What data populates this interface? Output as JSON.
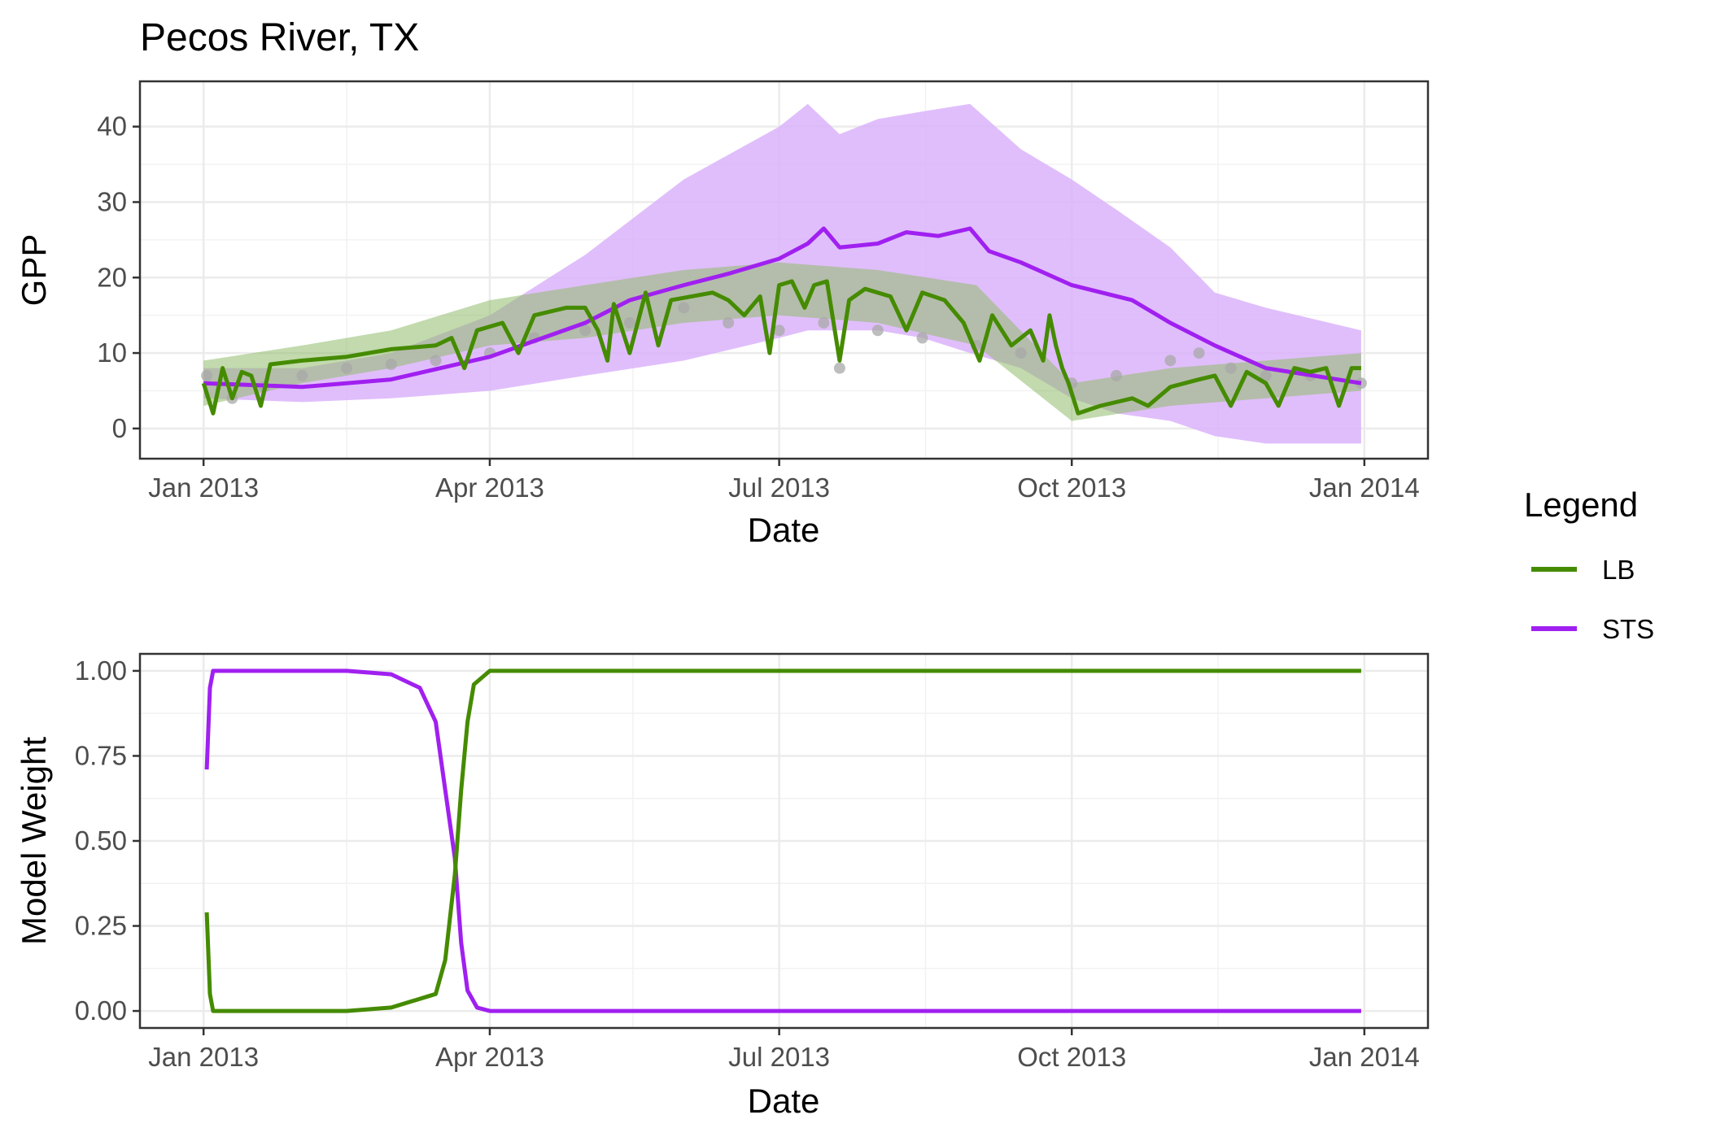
{
  "title": "Pecos River, TX",
  "legend": {
    "title": "Legend",
    "items": [
      {
        "label": "LB",
        "color": "#458b00"
      },
      {
        "label": "STS",
        "color": "#a020f0"
      }
    ]
  },
  "chart_data": [
    {
      "type": "line",
      "title": "Pecos River, TX",
      "xlabel": "Date",
      "ylabel": "GPP",
      "x_ticks": [
        "Jan 2013",
        "Apr 2013",
        "Jul 2013",
        "Oct 2013",
        "Jan 2014"
      ],
      "y_ticks": [
        "0",
        "10",
        "20",
        "30",
        "40"
      ],
      "xlim": [
        "2012-12-12",
        "2014-01-21"
      ],
      "ylim": [
        -4,
        46
      ],
      "grid": true,
      "series": [
        {
          "name": "LB",
          "color": "#458b00",
          "band_color": "#8fbc6a",
          "points": [
            [
              "2013-01-01",
              6
            ],
            [
              "2013-01-04",
              2
            ],
            [
              "2013-01-07",
              8
            ],
            [
              "2013-01-10",
              4
            ],
            [
              "2013-01-13",
              7.5
            ],
            [
              "2013-01-16",
              7
            ],
            [
              "2013-01-19",
              3
            ],
            [
              "2013-01-22",
              8.5
            ],
            [
              "2013-02-01",
              9
            ],
            [
              "2013-02-15",
              9.5
            ],
            [
              "2013-03-01",
              10.5
            ],
            [
              "2013-03-15",
              11
            ],
            [
              "2013-03-20",
              12
            ],
            [
              "2013-03-24",
              8
            ],
            [
              "2013-03-28",
              13
            ],
            [
              "2013-04-05",
              14
            ],
            [
              "2013-04-10",
              10
            ],
            [
              "2013-04-15",
              15
            ],
            [
              "2013-04-25",
              16
            ],
            [
              "2013-05-01",
              16
            ],
            [
              "2013-05-05",
              13
            ],
            [
              "2013-05-08",
              9
            ],
            [
              "2013-05-10",
              16.5
            ],
            [
              "2013-05-15",
              10
            ],
            [
              "2013-05-20",
              18
            ],
            [
              "2013-05-24",
              11
            ],
            [
              "2013-05-28",
              17
            ],
            [
              "2013-06-10",
              18
            ],
            [
              "2013-06-15",
              17
            ],
            [
              "2013-06-20",
              15
            ],
            [
              "2013-06-25",
              17.5
            ],
            [
              "2013-06-28",
              10
            ],
            [
              "2013-07-01",
              19
            ],
            [
              "2013-07-05",
              19.5
            ],
            [
              "2013-07-09",
              16
            ],
            [
              "2013-07-12",
              19
            ],
            [
              "2013-07-16",
              19.5
            ],
            [
              "2013-07-20",
              9
            ],
            [
              "2013-07-23",
              17
            ],
            [
              "2013-07-28",
              18.5
            ],
            [
              "2013-08-05",
              17.5
            ],
            [
              "2013-08-10",
              13
            ],
            [
              "2013-08-15",
              18
            ],
            [
              "2013-08-22",
              17
            ],
            [
              "2013-08-28",
              14
            ],
            [
              "2013-09-02",
              9
            ],
            [
              "2013-09-06",
              15
            ],
            [
              "2013-09-12",
              11
            ],
            [
              "2013-09-18",
              13
            ],
            [
              "2013-09-22",
              9
            ],
            [
              "2013-09-24",
              15
            ],
            [
              "2013-09-26",
              11
            ],
            [
              "2013-09-28",
              8
            ],
            [
              "2013-09-30",
              6
            ],
            [
              "2013-10-03",
              2
            ],
            [
              "2013-10-10",
              3
            ],
            [
              "2013-10-20",
              4
            ],
            [
              "2013-10-25",
              3
            ],
            [
              "2013-11-01",
              5.5
            ],
            [
              "2013-11-10",
              6.5
            ],
            [
              "2013-11-15",
              7
            ],
            [
              "2013-11-20",
              3
            ],
            [
              "2013-11-25",
              7.5
            ],
            [
              "2013-12-01",
              6
            ],
            [
              "2013-12-05",
              3
            ],
            [
              "2013-12-10",
              8
            ],
            [
              "2013-12-15",
              7.5
            ],
            [
              "2013-12-20",
              8
            ],
            [
              "2013-12-24",
              3
            ],
            [
              "2013-12-28",
              8
            ],
            [
              "2013-12-31",
              8
            ]
          ],
          "band": [
            [
              "2013-01-01",
              3,
              9
            ],
            [
              "2013-02-01",
              6,
              11
            ],
            [
              "2013-03-01",
              8,
              13
            ],
            [
              "2013-04-01",
              11,
              17
            ],
            [
              "2013-05-01",
              12,
              19
            ],
            [
              "2013-06-01",
              14,
              21
            ],
            [
              "2013-07-01",
              15,
              22
            ],
            [
              "2013-08-01",
              14,
              21
            ],
            [
              "2013-09-01",
              11,
              19
            ],
            [
              "2013-10-01",
              1,
              6
            ],
            [
              "2013-11-01",
              3,
              8
            ],
            [
              "2013-12-01",
              4,
              9
            ],
            [
              "2013-12-31",
              5,
              10
            ]
          ]
        },
        {
          "name": "STS",
          "color": "#a020f0",
          "band_color": "#dbb3fa",
          "points": [
            [
              "2013-01-01",
              6
            ],
            [
              "2013-02-01",
              5.5
            ],
            [
              "2013-03-01",
              6.5
            ],
            [
              "2013-04-01",
              9.5
            ],
            [
              "2013-05-01",
              14
            ],
            [
              "2013-05-15",
              17
            ],
            [
              "2013-06-01",
              19
            ],
            [
              "2013-06-15",
              20.5
            ],
            [
              "2013-07-01",
              22.5
            ],
            [
              "2013-07-10",
              24.5
            ],
            [
              "2013-07-15",
              26.5
            ],
            [
              "2013-07-20",
              24
            ],
            [
              "2013-08-01",
              24.5
            ],
            [
              "2013-08-10",
              26
            ],
            [
              "2013-08-20",
              25.5
            ],
            [
              "2013-08-30",
              26.5
            ],
            [
              "2013-09-05",
              23.5
            ],
            [
              "2013-09-15",
              22
            ],
            [
              "2013-10-01",
              19
            ],
            [
              "2013-10-20",
              17
            ],
            [
              "2013-11-01",
              14
            ],
            [
              "2013-11-15",
              11
            ],
            [
              "2013-12-01",
              8
            ],
            [
              "2013-12-31",
              6
            ]
          ],
          "band": [
            [
              "2013-01-01",
              4,
              8
            ],
            [
              "2013-02-01",
              3.5,
              8
            ],
            [
              "2013-03-01",
              4,
              10
            ],
            [
              "2013-04-01",
              5,
              15
            ],
            [
              "2013-05-01",
              7,
              23
            ],
            [
              "2013-06-01",
              9,
              33
            ],
            [
              "2013-07-01",
              12,
              40
            ],
            [
              "2013-07-10",
              13,
              43
            ],
            [
              "2013-07-20",
              13,
              39
            ],
            [
              "2013-08-01",
              13,
              41
            ],
            [
              "2013-08-15",
              12,
              42
            ],
            [
              "2013-08-30",
              10,
              43
            ],
            [
              "2013-09-15",
              8,
              37
            ],
            [
              "2013-10-01",
              4,
              33
            ],
            [
              "2013-10-15",
              2,
              29
            ],
            [
              "2013-11-01",
              1,
              24
            ],
            [
              "2013-11-15",
              -1,
              18
            ],
            [
              "2013-12-01",
              -2,
              16
            ],
            [
              "2013-12-31",
              -2,
              13
            ]
          ]
        },
        {
          "name": "",
          "type": "scatter",
          "color": "#a8a8a8",
          "points": [
            [
              "2013-01-02",
              7
            ],
            [
              "2013-01-10",
              4
            ],
            [
              "2013-01-20",
              5.5
            ],
            [
              "2013-02-01",
              7
            ],
            [
              "2013-02-15",
              8
            ],
            [
              "2013-03-01",
              8.5
            ],
            [
              "2013-03-15",
              9
            ],
            [
              "2013-04-01",
              10
            ],
            [
              "2013-04-15",
              12
            ],
            [
              "2013-05-01",
              13
            ],
            [
              "2013-05-15",
              14
            ],
            [
              "2013-06-01",
              16
            ],
            [
              "2013-06-15",
              14
            ],
            [
              "2013-07-01",
              13
            ],
            [
              "2013-07-15",
              14
            ],
            [
              "2013-07-20",
              8
            ],
            [
              "2013-08-01",
              13
            ],
            [
              "2013-08-15",
              12
            ],
            [
              "2013-09-01",
              11
            ],
            [
              "2013-09-15",
              10
            ],
            [
              "2013-10-01",
              6
            ],
            [
              "2013-10-15",
              7
            ],
            [
              "2013-11-01",
              9
            ],
            [
              "2013-11-10",
              10
            ],
            [
              "2013-11-20",
              8
            ],
            [
              "2013-12-01",
              7
            ],
            [
              "2013-12-15",
              7
            ],
            [
              "2013-12-31",
              6
            ]
          ]
        }
      ]
    },
    {
      "type": "line",
      "xlabel": "Date",
      "ylabel": "Model Weight",
      "x_ticks": [
        "Jan 2013",
        "Apr 2013",
        "Jul 2013",
        "Oct 2013",
        "Jan 2014"
      ],
      "y_ticks": [
        "0.00",
        "0.25",
        "0.50",
        "0.75",
        "1.00"
      ],
      "xlim": [
        "2012-12-12",
        "2014-01-21"
      ],
      "ylim": [
        -0.05,
        1.05
      ],
      "grid": true,
      "series": [
        {
          "name": "LB",
          "color": "#458b00",
          "points": [
            [
              "2013-01-02",
              0.29
            ],
            [
              "2013-01-03",
              0.05
            ],
            [
              "2013-01-04",
              0.0
            ],
            [
              "2013-02-15",
              0.0
            ],
            [
              "2013-03-01",
              0.01
            ],
            [
              "2013-03-15",
              0.05
            ],
            [
              "2013-03-18",
              0.15
            ],
            [
              "2013-03-21",
              0.4
            ],
            [
              "2013-03-23",
              0.65
            ],
            [
              "2013-03-25",
              0.85
            ],
            [
              "2013-03-27",
              0.96
            ],
            [
              "2013-04-01",
              1.0
            ],
            [
              "2013-12-31",
              1.0
            ]
          ]
        },
        {
          "name": "STS",
          "color": "#a020f0",
          "points": [
            [
              "2013-01-02",
              0.71
            ],
            [
              "2013-01-03",
              0.95
            ],
            [
              "2013-01-04",
              1.0
            ],
            [
              "2013-02-15",
              1.0
            ],
            [
              "2013-03-01",
              0.99
            ],
            [
              "2013-03-10",
              0.95
            ],
            [
              "2013-03-15",
              0.85
            ],
            [
              "2013-03-18",
              0.65
            ],
            [
              "2013-03-21",
              0.45
            ],
            [
              "2013-03-23",
              0.2
            ],
            [
              "2013-03-25",
              0.06
            ],
            [
              "2013-03-28",
              0.01
            ],
            [
              "2013-04-01",
              0.0
            ],
            [
              "2013-12-31",
              0.0
            ]
          ]
        }
      ]
    }
  ]
}
